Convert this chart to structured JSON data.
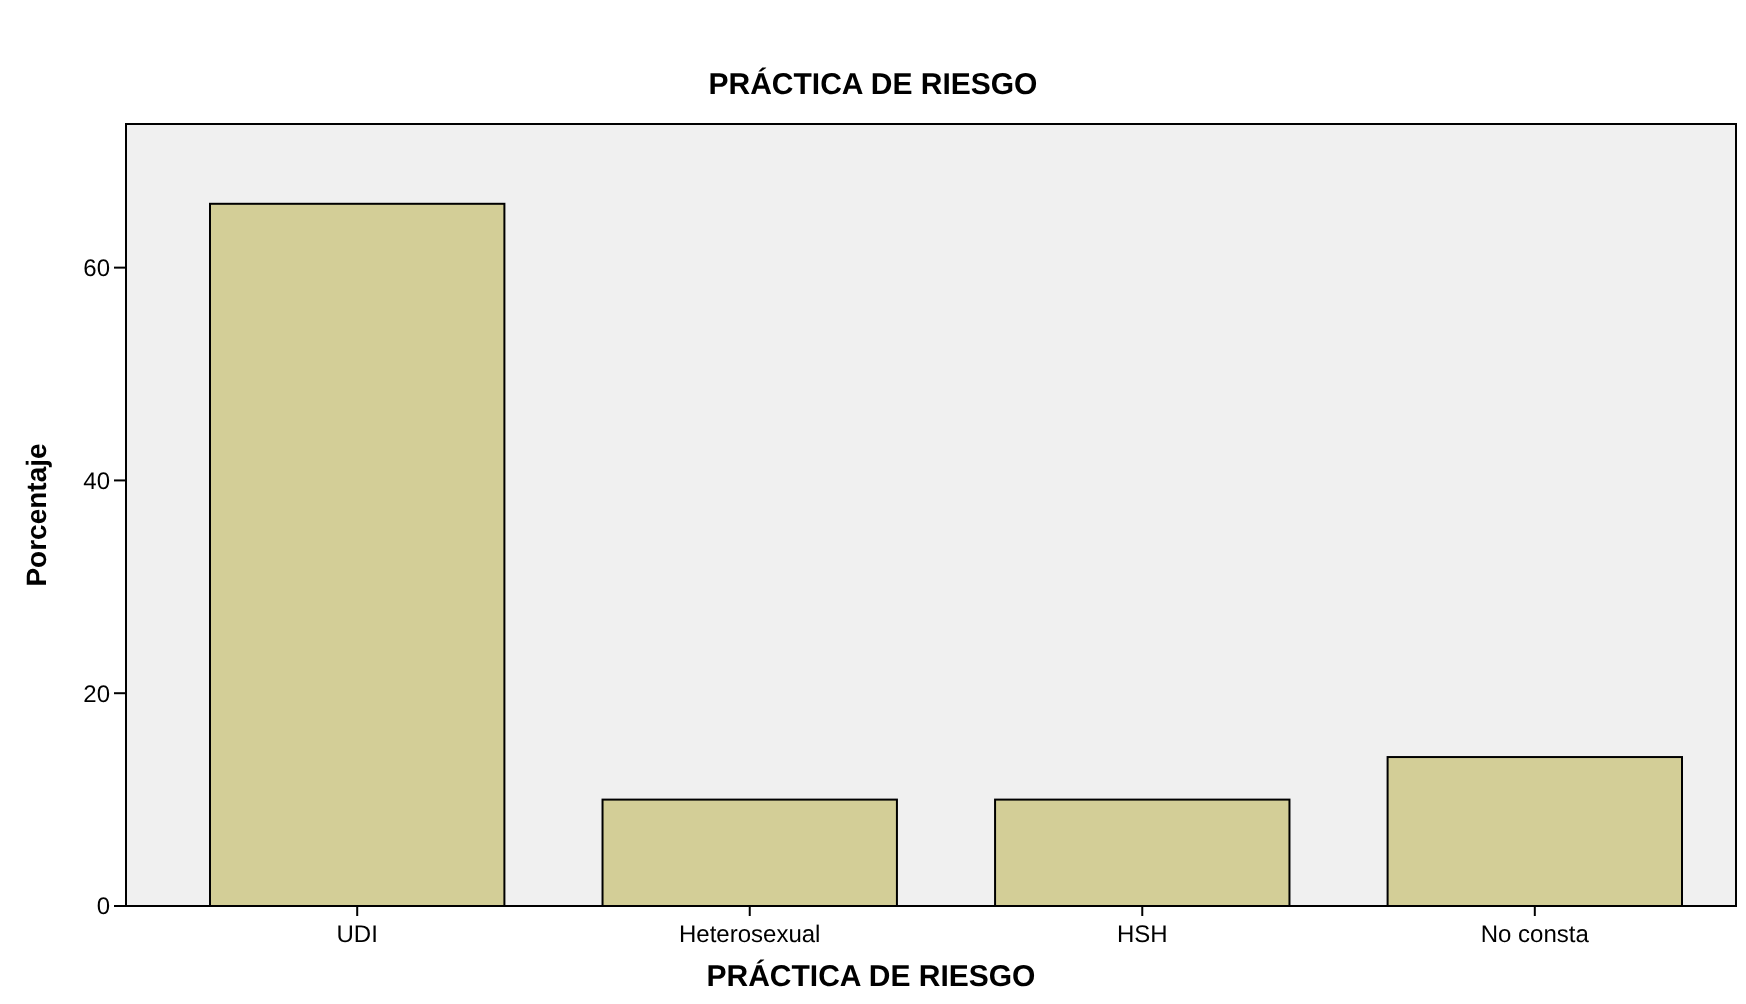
{
  "chart_data": {
    "type": "bar",
    "title": "PRÁCTICA DE RIESGO",
    "xlabel": "PRÁCTICA DE RIESGO",
    "ylabel": "Porcentaje",
    "categories": [
      "UDI",
      "Heterosexual",
      "HSH",
      "No consta"
    ],
    "values": [
      66,
      10,
      10,
      14
    ],
    "color": "#d3ce97",
    "ylim": [
      0,
      73.5
    ],
    "yticks": [
      0,
      20,
      40,
      60
    ],
    "grid": false
  }
}
